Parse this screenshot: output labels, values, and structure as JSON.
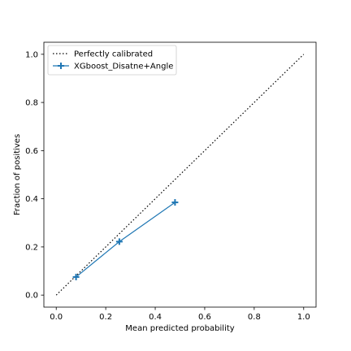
{
  "chart_data": {
    "type": "line",
    "title": "",
    "xlabel": "Mean predicted probability",
    "ylabel": "Fraction of positives",
    "xlim": [
      -0.05,
      1.05
    ],
    "ylim": [
      -0.05,
      1.05
    ],
    "xticks": [
      0.0,
      0.2,
      0.4,
      0.6,
      0.8,
      1.0
    ],
    "yticks": [
      0.0,
      0.2,
      0.4,
      0.6,
      0.8,
      1.0
    ],
    "xtick_labels": [
      "0.0",
      "0.2",
      "0.4",
      "0.6",
      "0.8",
      "1.0"
    ],
    "ytick_labels": [
      "0.0",
      "0.2",
      "0.4",
      "0.6",
      "0.8",
      "1.0"
    ],
    "grid": false,
    "legend_position": "upper-left",
    "series": [
      {
        "name": "Perfectly calibrated",
        "style": "dotted",
        "color": "#000000",
        "marker": "none",
        "x": [
          0.0,
          1.0
        ],
        "y": [
          0.0,
          1.0
        ]
      },
      {
        "name": "XGboost_Disatne+Angle",
        "style": "solid",
        "color": "#1f77b4",
        "marker": "plus",
        "x": [
          0.08,
          0.255,
          0.48
        ],
        "y": [
          0.075,
          0.222,
          0.385
        ]
      }
    ]
  }
}
